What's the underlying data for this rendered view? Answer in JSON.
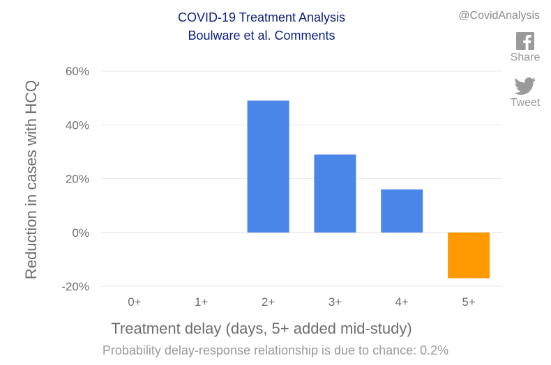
{
  "watermark": "@CovidAnalysis",
  "social": {
    "share_label": "Share",
    "tweet_label": "Tweet",
    "share_icon": "facebook-icon",
    "tweet_icon": "twitter-icon"
  },
  "footer_note": "Probability delay-response relationship is due to chance: 0.2%",
  "chart_data": {
    "type": "bar",
    "title_lines": [
      "COVID-19 Treatment Analysis",
      "Boulware et al. Comments"
    ],
    "xlabel": "Treatment delay (days, 5+ added mid-study)",
    "ylabel": "Reduction in cases with HCQ",
    "categories": [
      "0+",
      "1+",
      "2+",
      "3+",
      "4+",
      "5+"
    ],
    "values": [
      null,
      null,
      49,
      29,
      16,
      -17
    ],
    "bar_colors": [
      "#4a86e8",
      "#4a86e8",
      "#4a86e8",
      "#4a86e8",
      "#4a86e8",
      "#ff9900"
    ],
    "yticks": [
      -20,
      0,
      20,
      40,
      60
    ],
    "ytick_labels": [
      "-20%",
      "0%",
      "20%",
      "40%",
      "60%"
    ],
    "ylim": [
      -20,
      60
    ],
    "grid": true,
    "legend": "none"
  }
}
